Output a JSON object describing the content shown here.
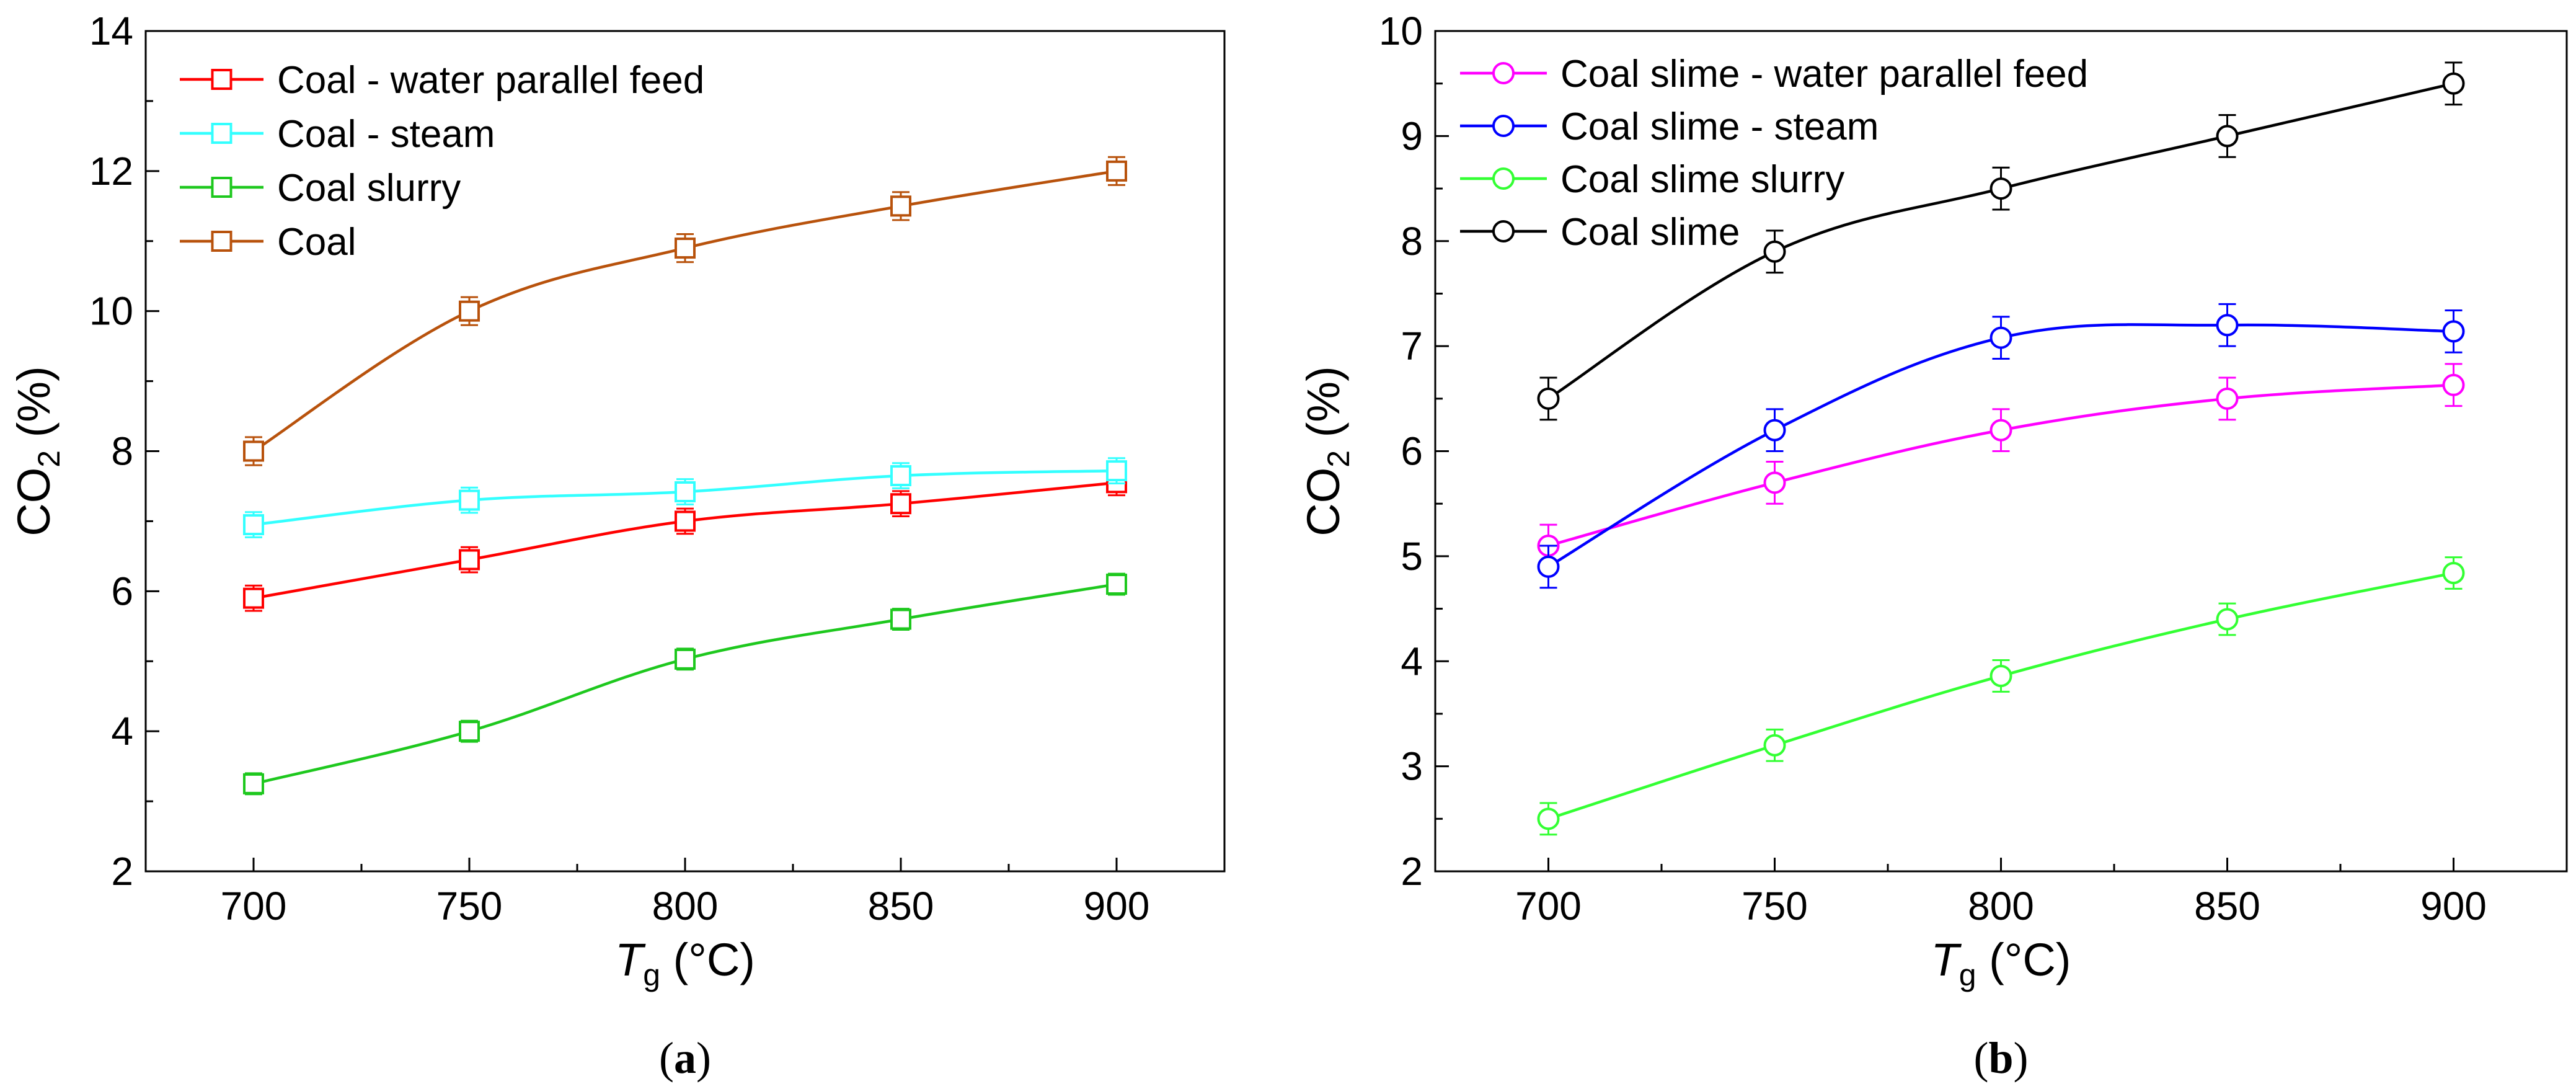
{
  "panels": [
    {
      "id": "a",
      "panel_label": "a",
      "chart_data": {
        "type": "line",
        "marker": "square",
        "xlabel_symbol": "T",
        "xlabel_subscript": "g",
        "xlabel_unit": "(°C)",
        "ylabel_main": "CO",
        "ylabel_subscript": "2",
        "ylabel_unit": "(%)",
        "xlim": [
          675,
          925
        ],
        "ylim": [
          2,
          14
        ],
        "xticks": [
          700,
          750,
          800,
          850,
          900
        ],
        "yticks": [
          2,
          4,
          6,
          8,
          10,
          12,
          14
        ],
        "x": [
          700,
          750,
          800,
          850,
          900
        ],
        "legend_position": "top-left",
        "series": [
          {
            "name": "Coal - water parallel feed",
            "color": "#ff0000",
            "values": [
              5.9,
              6.45,
              7.0,
              7.25,
              7.55
            ],
            "errors": [
              0.18,
              0.18,
              0.18,
              0.18,
              0.18
            ]
          },
          {
            "name": "Coal - steam",
            "color": "#33ffff",
            "values": [
              6.95,
              7.3,
              7.42,
              7.65,
              7.72
            ],
            "errors": [
              0.18,
              0.18,
              0.18,
              0.18,
              0.18
            ]
          },
          {
            "name": "Coal slurry",
            "color": "#1ec81e",
            "values": [
              3.25,
              4.0,
              5.03,
              5.6,
              6.1
            ],
            "errors": [
              0.15,
              0.15,
              0.15,
              0.15,
              0.15
            ]
          },
          {
            "name": "Coal",
            "color": "#b8520c",
            "values": [
              8.0,
              10.0,
              10.9,
              11.5,
              12.0
            ],
            "errors": [
              0.2,
              0.2,
              0.2,
              0.2,
              0.2
            ]
          }
        ]
      }
    },
    {
      "id": "b",
      "panel_label": "b",
      "chart_data": {
        "type": "line",
        "marker": "circle",
        "xlabel_symbol": "T",
        "xlabel_subscript": "g",
        "xlabel_unit": "(°C)",
        "ylabel_main": "CO",
        "ylabel_subscript": "2",
        "ylabel_unit": "(%)",
        "xlim": [
          675,
          925
        ],
        "ylim": [
          2,
          10
        ],
        "xticks": [
          700,
          750,
          800,
          850,
          900
        ],
        "yticks": [
          2,
          3,
          4,
          5,
          6,
          7,
          8,
          9,
          10
        ],
        "x": [
          700,
          750,
          800,
          850,
          900
        ],
        "legend_position": "top-left",
        "series": [
          {
            "name": "Coal slime - water parallel feed",
            "color": "#ff00ff",
            "values": [
              5.1,
              5.7,
              6.2,
              6.5,
              6.63
            ],
            "errors": [
              0.2,
              0.2,
              0.2,
              0.2,
              0.2
            ]
          },
          {
            "name": "Coal slime - steam",
            "color": "#0000ff",
            "values": [
              4.9,
              6.2,
              7.08,
              7.2,
              7.14
            ],
            "errors": [
              0.2,
              0.2,
              0.2,
              0.2,
              0.2
            ]
          },
          {
            "name": "Coal slime slurry",
            "color": "#33ff33",
            "values": [
              2.5,
              3.2,
              3.86,
              4.4,
              4.84
            ],
            "errors": [
              0.15,
              0.15,
              0.15,
              0.15,
              0.15
            ]
          },
          {
            "name": "Coal slime",
            "color": "#000000",
            "values": [
              6.5,
              7.9,
              8.5,
              9.0,
              9.5
            ],
            "errors": [
              0.2,
              0.2,
              0.2,
              0.2,
              0.2
            ]
          }
        ]
      }
    }
  ]
}
